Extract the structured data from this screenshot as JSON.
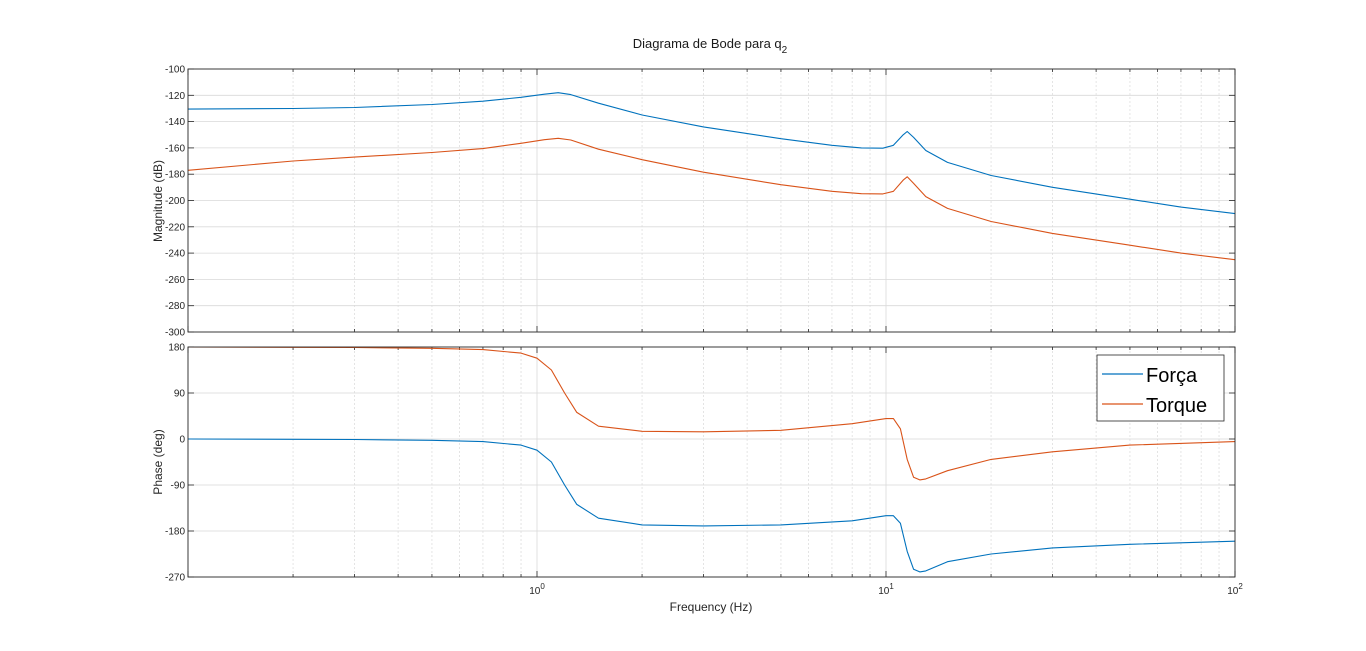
{
  "chart_data": {
    "type": "line",
    "title": "Diagrama de Bode para q",
    "title_subscript": "2",
    "xlabel": "Frequency  (Hz)",
    "xscale": "log",
    "xlim": [
      0.1,
      100
    ],
    "grid": true,
    "x_tick_labels": [
      {
        "base": "10",
        "exp": "0",
        "value": 1
      },
      {
        "base": "10",
        "exp": "1",
        "value": 10
      },
      {
        "base": "10",
        "exp": "2",
        "value": 100
      }
    ],
    "legend": {
      "placement": "top-right of phase panel",
      "entries": [
        {
          "name": "Força",
          "color": "#0072BD"
        },
        {
          "name": "Torque",
          "color": "#D95319"
        }
      ]
    },
    "magnitude": {
      "ylabel": "Magnitude (dB)",
      "ylim": [
        -300,
        -100
      ],
      "yticks": [
        -100,
        -120,
        -140,
        -160,
        -180,
        -200,
        -220,
        -240,
        -260,
        -280,
        -300
      ],
      "series": [
        {
          "name": "Força",
          "color": "#0072BD",
          "x": [
            0.1,
            0.2,
            0.3,
            0.5,
            0.7,
            0.9,
            1.05,
            1.15,
            1.25,
            1.5,
            2,
            3,
            5,
            7,
            8.5,
            9.8,
            10.5,
            11.2,
            11.5,
            12.0,
            13,
            15,
            20,
            30,
            50,
            70,
            100
          ],
          "y": [
            -130.5,
            -130,
            -129.3,
            -127,
            -124.5,
            -121.5,
            -119.2,
            -118,
            -119.5,
            -126,
            -135,
            -144,
            -153,
            -158,
            -160,
            -160.2,
            -158,
            -150,
            -147.5,
            -152,
            -162,
            -171,
            -181,
            -190,
            -199,
            -205,
            -210
          ]
        },
        {
          "name": "Torque",
          "color": "#D95319",
          "x": [
            0.1,
            0.2,
            0.3,
            0.5,
            0.7,
            0.9,
            1.05,
            1.15,
            1.25,
            1.5,
            2,
            3,
            5,
            7,
            8.5,
            9.8,
            10.5,
            11.2,
            11.5,
            12.0,
            13,
            15,
            20,
            30,
            50,
            70,
            100
          ],
          "y": [
            -177,
            -170,
            -167,
            -163.5,
            -160.5,
            -156.5,
            -153.8,
            -152.7,
            -154,
            -161,
            -169,
            -178.5,
            -188,
            -193,
            -194.8,
            -195,
            -193,
            -184.5,
            -182,
            -187,
            -197,
            -206,
            -216,
            -225,
            -234,
            -240,
            -245
          ]
        }
      ]
    },
    "phase": {
      "ylabel": "Phase (deg)",
      "ylim": [
        -270,
        180
      ],
      "yticks": [
        180,
        90,
        0,
        -90,
        -180,
        -270
      ],
      "series": [
        {
          "name": "Força",
          "color": "#0072BD",
          "x": [
            0.1,
            0.2,
            0.3,
            0.5,
            0.7,
            0.9,
            1.0,
            1.1,
            1.2,
            1.3,
            1.5,
            2,
            3,
            5,
            8,
            10,
            10.5,
            11.0,
            11.5,
            12.0,
            12.5,
            13,
            15,
            20,
            30,
            50,
            100
          ],
          "y": [
            0,
            -0.5,
            -1,
            -2.5,
            -5,
            -12,
            -22,
            -45,
            -90,
            -128,
            -155,
            -168,
            -170,
            -168,
            -160,
            -150,
            -150,
            -165,
            -220,
            -255,
            -260,
            -258,
            -240,
            -225,
            -213,
            -206,
            -200
          ]
        },
        {
          "name": "Torque",
          "color": "#D95319",
          "x": [
            0.1,
            0.2,
            0.3,
            0.5,
            0.7,
            0.9,
            1.0,
            1.1,
            1.2,
            1.3,
            1.5,
            2,
            3,
            5,
            8,
            10,
            10.5,
            11.0,
            11.5,
            12.0,
            12.5,
            13,
            15,
            20,
            30,
            50,
            100
          ],
          "y": [
            180,
            179.5,
            179,
            177.5,
            175,
            168,
            158,
            135,
            90,
            52,
            25,
            15,
            14,
            17,
            30,
            40,
            40,
            20,
            -40,
            -75,
            -80,
            -78,
            -62,
            -40,
            -25,
            -12,
            -5
          ]
        }
      ]
    }
  }
}
